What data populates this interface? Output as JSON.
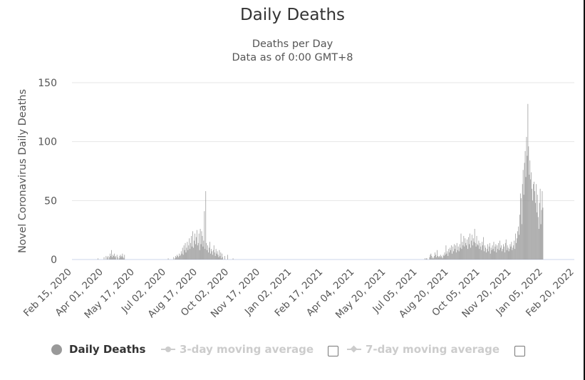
{
  "chart_data": {
    "type": "bar",
    "title": "Daily Deaths",
    "subtitle_lines": [
      "Deaths per Day",
      "Data as of 0:00 GMT+8"
    ],
    "ylabel": "Novel Coronavirus Daily Deaths",
    "xlabel": "",
    "ylim": [
      0,
      150
    ],
    "y_ticks": [
      0,
      50,
      100,
      150
    ],
    "x_start_date": "2020-02-15",
    "x_end_date": "2022-02-20",
    "x_tick_labels": [
      "Feb 15, 2020",
      "Apr 01, 2020",
      "May 17, 2020",
      "Jul 02, 2020",
      "Aug 17, 2020",
      "Oct 02, 2020",
      "Nov 17, 2020",
      "Jan 02, 2021",
      "Feb 17, 2021",
      "Apr 04, 2021",
      "May 20, 2021",
      "Jul 05, 2021",
      "Aug 20, 2021",
      "Oct 05, 2021",
      "Nov 20, 2021",
      "Jan 05, 2022",
      "Feb 20, 2022"
    ],
    "grid": true,
    "bar_color": "#999999",
    "series": [
      {
        "name": "Daily Deaths",
        "start_date": "2020-03-17",
        "note": "values are approximate, one per day starting at start_date",
        "values": [
          0,
          0,
          0,
          0,
          0,
          0,
          0,
          1,
          0,
          0,
          0,
          0,
          0,
          0,
          0,
          0,
          2,
          0,
          0,
          3,
          0,
          2,
          3,
          0,
          2,
          5,
          3,
          8,
          2,
          4,
          3,
          5,
          2,
          3,
          0,
          4,
          2,
          0,
          1,
          3,
          4,
          2,
          3,
          5,
          2,
          1,
          4,
          0,
          0,
          0,
          0,
          0,
          0,
          0,
          0,
          0,
          0,
          0,
          0,
          0,
          0,
          0,
          0,
          0,
          0,
          0,
          0,
          0,
          0,
          0,
          0,
          0,
          0,
          0,
          0,
          0,
          0,
          0,
          0,
          0,
          0,
          0,
          0,
          0,
          0,
          0,
          0,
          0,
          0,
          0,
          0,
          0,
          0,
          0,
          0,
          0,
          0,
          0,
          0,
          0,
          0,
          0,
          0,
          0,
          0,
          0,
          0,
          0,
          0,
          0,
          1,
          0,
          0,
          0,
          0,
          0,
          0,
          0,
          2,
          0,
          1,
          3,
          2,
          4,
          3,
          2,
          5,
          3,
          4,
          7,
          5,
          10,
          4,
          12,
          8,
          14,
          6,
          10,
          15,
          8,
          12,
          18,
          9,
          14,
          20,
          11,
          24,
          10,
          16,
          22,
          13,
          19,
          25,
          12,
          14,
          22,
          8,
          26,
          13,
          24,
          20,
          11,
          16,
          41,
          9,
          58,
          14,
          8,
          12,
          6,
          10,
          15,
          5,
          9,
          7,
          4,
          8,
          12,
          6,
          3,
          9,
          5,
          7,
          4,
          2,
          8,
          3,
          6,
          1,
          5,
          2,
          0,
          0,
          3,
          0,
          0,
          0,
          4,
          0,
          0,
          0,
          0,
          0,
          0,
          0,
          1,
          0,
          0,
          0,
          0,
          0,
          0,
          0,
          0,
          0,
          0,
          0,
          0,
          0,
          0,
          0,
          0,
          0,
          0,
          0,
          0,
          0,
          0,
          0,
          0,
          0,
          0,
          0,
          0,
          0,
          0,
          0,
          0,
          0,
          0,
          0,
          0,
          0,
          0,
          0,
          0,
          0,
          0,
          0,
          0,
          0,
          0,
          0,
          0,
          0,
          0,
          0,
          0,
          0,
          0,
          0,
          0,
          0,
          0,
          0,
          0,
          0,
          0,
          0,
          0,
          0,
          0,
          0,
          0,
          0,
          0,
          0,
          0,
          0,
          0,
          0,
          0,
          0,
          0,
          0,
          0,
          0,
          0,
          0,
          0,
          0,
          0,
          0,
          0,
          0,
          0,
          0,
          0,
          0,
          0,
          0,
          0,
          0,
          0,
          0,
          0,
          0,
          0,
          0,
          0,
          0,
          0,
          0,
          0,
          0,
          0,
          0,
          0,
          0,
          0,
          0,
          0,
          0,
          0,
          0,
          0,
          0,
          0,
          0,
          0,
          0,
          0,
          0,
          0,
          0,
          0,
          0,
          0,
          0,
          0,
          0,
          0,
          0,
          0,
          0,
          0,
          0,
          0,
          0,
          0,
          0,
          0,
          0,
          0,
          0,
          0,
          0,
          0,
          0,
          0,
          0,
          0,
          0,
          0,
          0,
          0,
          0,
          0,
          0,
          0,
          0,
          0,
          0,
          0,
          0,
          0,
          0,
          0,
          0,
          0,
          0,
          0,
          0,
          0,
          0,
          0,
          0,
          0,
          0,
          0,
          0,
          0,
          0,
          0,
          0,
          0,
          0,
          0,
          0,
          0,
          0,
          0,
          0,
          0,
          0,
          0,
          0,
          0,
          0,
          0,
          0,
          0,
          0,
          0,
          0,
          0,
          0,
          0,
          0,
          0,
          0,
          0,
          0,
          0,
          0,
          0,
          0,
          0,
          0,
          0,
          0,
          0,
          0,
          0,
          0,
          0,
          0,
          0,
          0,
          0,
          0,
          0,
          0,
          0,
          0,
          0,
          0,
          0,
          0,
          0,
          0,
          0,
          0,
          0,
          0,
          0,
          0,
          0,
          0,
          0,
          0,
          0,
          0,
          0,
          0,
          0,
          0,
          0,
          0,
          0,
          0,
          0,
          0,
          0,
          0,
          0,
          0,
          0,
          0,
          0,
          0,
          0,
          0,
          0,
          0,
          0,
          1,
          0,
          1,
          1,
          0,
          0,
          0,
          2,
          4,
          5,
          3,
          1,
          2,
          1,
          3,
          6,
          4,
          2,
          8,
          3,
          2,
          3,
          2,
          4,
          3,
          2,
          1,
          4,
          3,
          6,
          4,
          12,
          5,
          7,
          3,
          9,
          6,
          10,
          8,
          12,
          5,
          11,
          7,
          13,
          9,
          12,
          6,
          14,
          8,
          11,
          7,
          13,
          10,
          22,
          9,
          15,
          12,
          20,
          11,
          18,
          14,
          12,
          17,
          9,
          19,
          13,
          22,
          10,
          16,
          21,
          12,
          18,
          15,
          26,
          14,
          11,
          20,
          13,
          12,
          16,
          9,
          14,
          11,
          8,
          15,
          12,
          19,
          7,
          12,
          10,
          6,
          9,
          13,
          7,
          11,
          14,
          5,
          10,
          8,
          12,
          9,
          15,
          7,
          11,
          13,
          6,
          12,
          9,
          14,
          8,
          16,
          10,
          12,
          7,
          9,
          13,
          11,
          6,
          14,
          17,
          8,
          12,
          10,
          7,
          9,
          13,
          11,
          15,
          8,
          10,
          12,
          16,
          9,
          22,
          14,
          18,
          24,
          28,
          21,
          38,
          56,
          52,
          30,
          64,
          76,
          55,
          82,
          92,
          70,
          104,
          88,
          132,
          96,
          72,
          84,
          68,
          74,
          60,
          50,
          64,
          66,
          58,
          48,
          64,
          40,
          55,
          36,
          26,
          48,
          60,
          30,
          42,
          58,
          44
        ]
      },
      {
        "name": "3-day moving average",
        "visible": false
      },
      {
        "name": "7-day moving average",
        "visible": false
      }
    ]
  },
  "legend": {
    "daily_deaths": "Daily Deaths",
    "three_day": "3-day moving average",
    "seven_day": "7-day moving average"
  },
  "colors": {
    "bar": "#999999",
    "grid": "#e6e6e6",
    "axis": "#ccd6eb",
    "legend_active": "#333333",
    "legend_inactive": "#cccccc"
  }
}
